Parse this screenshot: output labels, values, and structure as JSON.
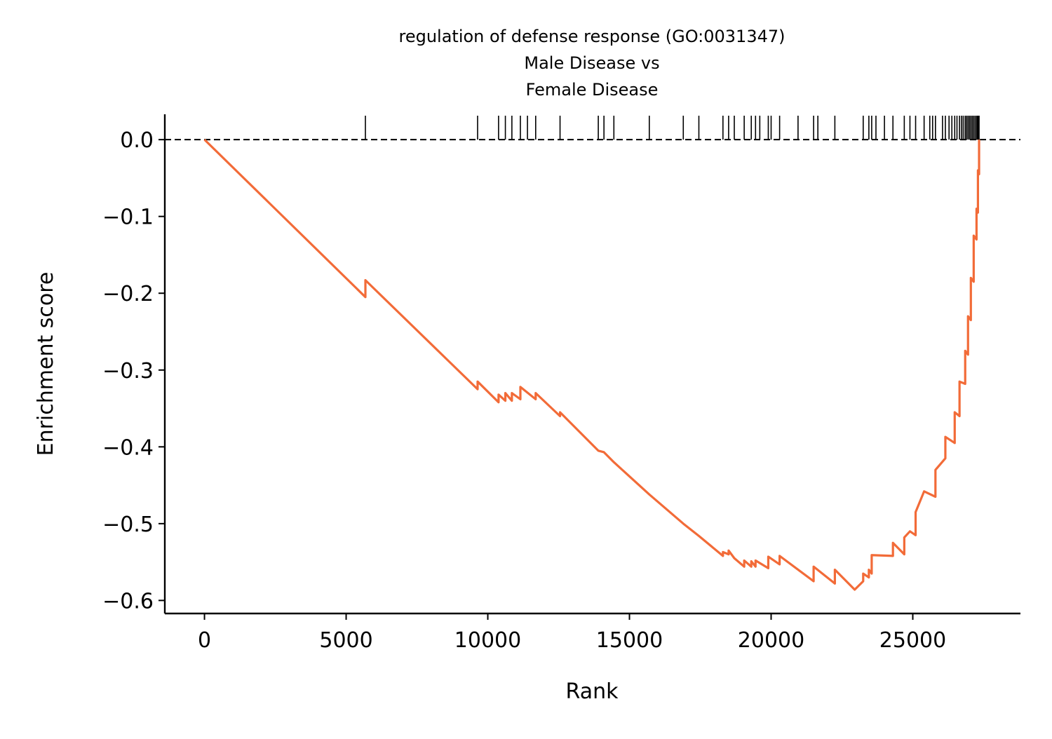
{
  "colors": {
    "curve": "#f26b38",
    "axis": "#000000",
    "hits": "#000000",
    "zero_line": "#000000"
  },
  "chart_data": {
    "type": "line",
    "title_lines": [
      "regulation of defense response (GO:0031347)",
      "Male Disease vs",
      "Female Disease"
    ],
    "xlabel": "Rank",
    "ylabel": "Enrichment score",
    "xlim": [
      -1400,
      28800
    ],
    "ylim": [
      -0.617,
      0.033
    ],
    "x_ticks": [
      0,
      5000,
      10000,
      15000,
      20000,
      25000
    ],
    "x_tick_labels": [
      "0",
      "5000",
      "10000",
      "15000",
      "20000",
      "25000"
    ],
    "y_ticks": [
      0.0,
      -0.1,
      -0.2,
      -0.3,
      -0.4,
      -0.5,
      -0.6
    ],
    "y_tick_labels": [
      "0.0",
      "−0.1",
      "−0.2",
      "−0.3",
      "−0.4",
      "−0.5",
      "−0.6"
    ],
    "grid": false,
    "reference_line": {
      "y": 0.0,
      "style": "dashed"
    },
    "hit_ranks": [
      5680,
      9640,
      10380,
      10620,
      10850,
      11150,
      11400,
      11690,
      12550,
      13900,
      14100,
      14450,
      15700,
      16900,
      17450,
      18300,
      18500,
      18700,
      19050,
      19300,
      19450,
      19600,
      19900,
      20000,
      20300,
      20950,
      21500,
      21650,
      22250,
      23250,
      23450,
      23550,
      23700,
      24000,
      24300,
      24700,
      24900,
      25100,
      25400,
      25600,
      25700,
      25800,
      26050,
      26150,
      26280,
      26380,
      26480,
      26560,
      26650,
      26720,
      26780,
      26850,
      26900,
      26950,
      27000,
      27050,
      27100,
      27150,
      27200,
      27250,
      27280,
      27300,
      27320,
      27340
    ],
    "series": [
      {
        "values": [
          [
            0,
            0.0
          ],
          [
            5680,
            -0.205
          ],
          [
            5680,
            -0.183
          ],
          [
            9640,
            -0.325
          ],
          [
            9640,
            -0.315
          ],
          [
            10380,
            -0.342
          ],
          [
            10380,
            -0.332
          ],
          [
            10620,
            -0.34
          ],
          [
            10620,
            -0.33
          ],
          [
            10850,
            -0.34
          ],
          [
            10850,
            -0.33
          ],
          [
            11150,
            -0.338
          ],
          [
            11150,
            -0.322
          ],
          [
            11690,
            -0.338
          ],
          [
            11690,
            -0.33
          ],
          [
            12550,
            -0.36
          ],
          [
            12550,
            -0.355
          ],
          [
            13900,
            -0.405
          ],
          [
            14100,
            -0.407
          ],
          [
            14450,
            -0.42
          ],
          [
            15700,
            -0.462
          ],
          [
            16900,
            -0.5
          ],
          [
            17450,
            -0.516
          ],
          [
            18300,
            -0.542
          ],
          [
            18300,
            -0.537
          ],
          [
            18500,
            -0.54
          ],
          [
            18500,
            -0.535
          ],
          [
            18700,
            -0.545
          ],
          [
            19050,
            -0.556
          ],
          [
            19050,
            -0.548
          ],
          [
            19300,
            -0.556
          ],
          [
            19300,
            -0.549
          ],
          [
            19450,
            -0.556
          ],
          [
            19450,
            -0.548
          ],
          [
            19900,
            -0.558
          ],
          [
            19900,
            -0.543
          ],
          [
            20300,
            -0.553
          ],
          [
            20300,
            -0.542
          ],
          [
            21500,
            -0.575
          ],
          [
            21500,
            -0.556
          ],
          [
            22250,
            -0.578
          ],
          [
            22250,
            -0.56
          ],
          [
            22950,
            -0.586
          ],
          [
            23250,
            -0.575
          ],
          [
            23250,
            -0.565
          ],
          [
            23450,
            -0.57
          ],
          [
            23450,
            -0.56
          ],
          [
            23550,
            -0.565
          ],
          [
            23550,
            -0.541
          ],
          [
            24300,
            -0.542
          ],
          [
            24300,
            -0.525
          ],
          [
            24700,
            -0.54
          ],
          [
            24700,
            -0.518
          ],
          [
            24900,
            -0.51
          ],
          [
            25100,
            -0.515
          ],
          [
            25100,
            -0.485
          ],
          [
            25400,
            -0.458
          ],
          [
            25800,
            -0.465
          ],
          [
            25800,
            -0.43
          ],
          [
            26150,
            -0.415
          ],
          [
            26150,
            -0.387
          ],
          [
            26480,
            -0.395
          ],
          [
            26480,
            -0.355
          ],
          [
            26650,
            -0.36
          ],
          [
            26650,
            -0.315
          ],
          [
            26850,
            -0.318
          ],
          [
            26850,
            -0.275
          ],
          [
            26950,
            -0.28
          ],
          [
            26950,
            -0.23
          ],
          [
            27050,
            -0.235
          ],
          [
            27050,
            -0.18
          ],
          [
            27150,
            -0.185
          ],
          [
            27150,
            -0.125
          ],
          [
            27250,
            -0.13
          ],
          [
            27250,
            -0.09
          ],
          [
            27300,
            -0.095
          ],
          [
            27300,
            -0.04
          ],
          [
            27340,
            -0.045
          ],
          [
            27340,
            0.0
          ]
        ]
      }
    ]
  }
}
